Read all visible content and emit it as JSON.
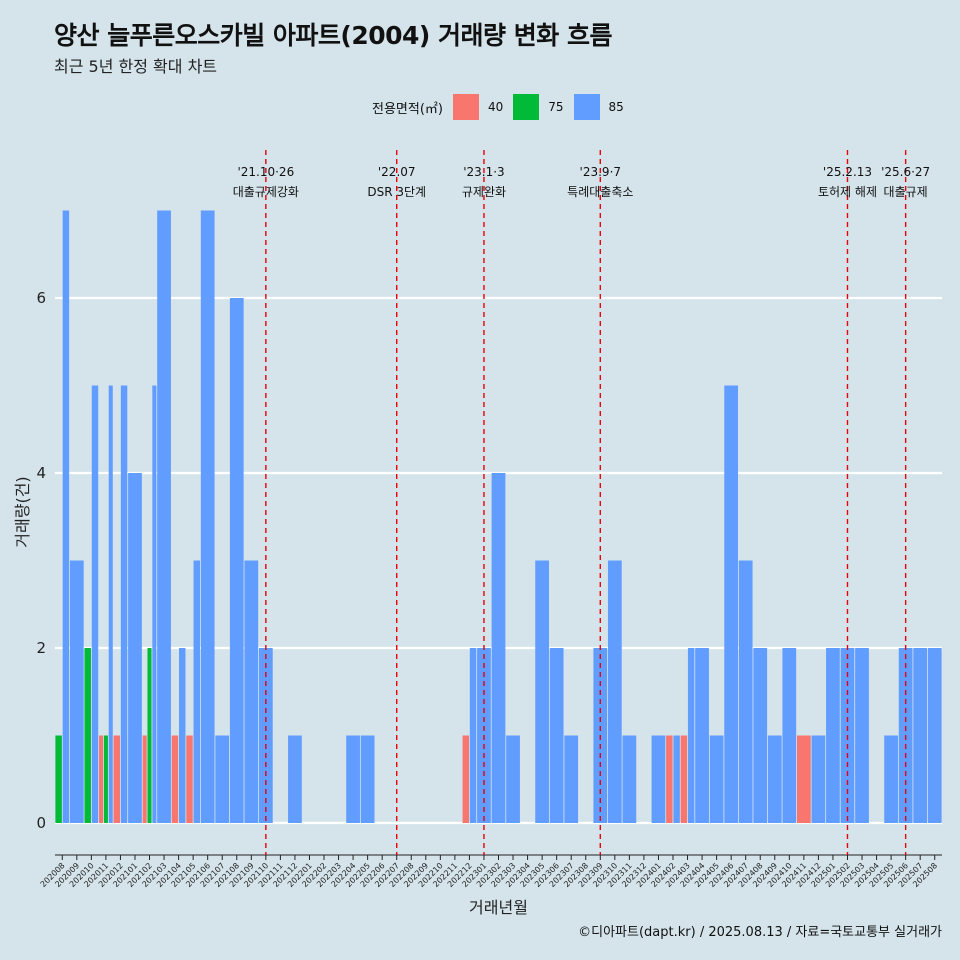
{
  "title": "양산 늘푸른오스카빌 아파트(2004) 거래량 변화 흐름",
  "subtitle": "최근 5년 한정 확대 차트",
  "legend": {
    "title": "전용면적(㎡)",
    "items": [
      {
        "label": "40",
        "color": "#f8766d"
      },
      {
        "label": "75",
        "color": "#00ba38"
      },
      {
        "label": "85",
        "color": "#619cff"
      }
    ]
  },
  "caption": "©디아파트(dapt.kr) / 2025.08.13 / 자료=국토교통부 실거래가",
  "chart_data": {
    "type": "bar",
    "xlabel": "거래년월",
    "ylabel": "거래량(건)",
    "ylim": [
      0,
      7
    ],
    "yticks": [
      0,
      2,
      4,
      6
    ],
    "grid": true,
    "legend_position": "top",
    "categories": [
      "202008",
      "202009",
      "202010",
      "202011",
      "202012",
      "202101",
      "202102",
      "202103",
      "202104",
      "202105",
      "202106",
      "202107",
      "202108",
      "202109",
      "202110",
      "202111",
      "202112",
      "202201",
      "202202",
      "202203",
      "202204",
      "202205",
      "202206",
      "202207",
      "202208",
      "202209",
      "202210",
      "202211",
      "202212",
      "202301",
      "202302",
      "202303",
      "202304",
      "202305",
      "202306",
      "202307",
      "202308",
      "202309",
      "202310",
      "202311",
      "202312",
      "202401",
      "202402",
      "202403",
      "202404",
      "202405",
      "202406",
      "202407",
      "202408",
      "202409",
      "202410",
      "202411",
      "202412",
      "202501",
      "202502",
      "202503",
      "202504",
      "202505",
      "202506",
      "202507",
      "202508"
    ],
    "series": [
      {
        "name": "40",
        "color": "#f8766d",
        "values": [
          0,
          0,
          0,
          1,
          1,
          0,
          1,
          0,
          1,
          1,
          0,
          0,
          0,
          0,
          0,
          0,
          0,
          0,
          0,
          0,
          0,
          0,
          0,
          0,
          0,
          0,
          0,
          0,
          1,
          0,
          0,
          0,
          0,
          0,
          0,
          0,
          0,
          0,
          0,
          0,
          0,
          0,
          1,
          1,
          0,
          0,
          0,
          0,
          0,
          0,
          0,
          1,
          0,
          0,
          0,
          0,
          0,
          0,
          0,
          0,
          0
        ]
      },
      {
        "name": "75",
        "color": "#00ba38",
        "values": [
          1,
          0,
          2,
          1,
          0,
          0,
          2,
          0,
          0,
          0,
          0,
          0,
          0,
          0,
          0,
          0,
          0,
          0,
          0,
          0,
          0,
          0,
          0,
          0,
          0,
          0,
          0,
          0,
          0,
          0,
          0,
          0,
          0,
          0,
          0,
          0,
          0,
          0,
          0,
          0,
          0,
          0,
          0,
          0,
          0,
          0,
          0,
          0,
          0,
          0,
          0,
          0,
          0,
          0,
          0,
          0,
          0,
          0,
          0,
          0,
          0
        ]
      },
      {
        "name": "85",
        "color": "#619cff",
        "values": [
          7,
          3,
          5,
          5,
          5,
          4,
          5,
          7,
          2,
          3,
          7,
          1,
          6,
          3,
          2,
          0,
          1,
          0,
          0,
          0,
          1,
          1,
          0,
          0,
          0,
          0,
          0,
          0,
          2,
          2,
          4,
          1,
          0,
          3,
          2,
          1,
          0,
          2,
          3,
          1,
          0,
          1,
          1,
          2,
          2,
          1,
          5,
          3,
          2,
          1,
          2,
          0,
          1,
          2,
          2,
          2,
          0,
          1,
          2,
          2,
          2
        ]
      }
    ],
    "events": [
      {
        "month": "202110",
        "date": "'21.10·26",
        "label": "대출규제강화"
      },
      {
        "month": "202207",
        "date": "'22.07",
        "label": "DSR 3단계"
      },
      {
        "month": "202301",
        "date": "'23.1·3",
        "label": "규제완화"
      },
      {
        "month": "202309",
        "date": "'23.9·7",
        "label": "특례대출축소"
      },
      {
        "month": "202502",
        "date": "'25.2.13",
        "label": "토허제 해제"
      },
      {
        "month": "202506",
        "date": "'25.6·27",
        "label": "대출규제"
      }
    ]
  }
}
